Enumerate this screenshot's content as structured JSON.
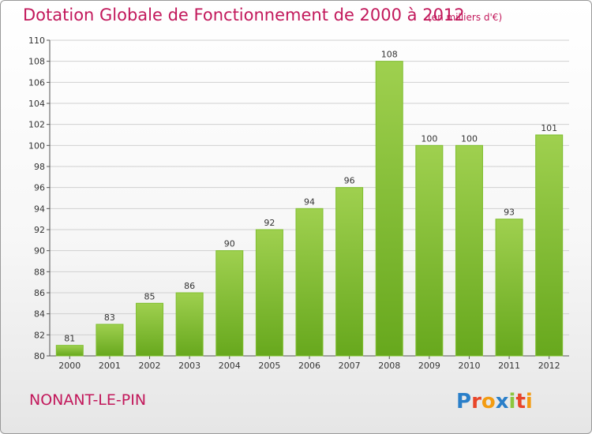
{
  "header": {
    "title": "Dotation Globale de Fonctionnement de 2000 à 2012",
    "units": "(en milliers d'€)"
  },
  "footer": {
    "commune": "NONANT-LE-PIN",
    "logo_text": "Proxiti"
  },
  "colors": {
    "title": "#c2185b",
    "bar_light": "#9fd04f",
    "bar_dark": "#67a81d",
    "grid": "#d0d0d0",
    "axis": "#555555"
  },
  "chart_data": {
    "type": "bar",
    "categories": [
      "2000",
      "2001",
      "2002",
      "2003",
      "2004",
      "2005",
      "2006",
      "2007",
      "2008",
      "2009",
      "2010",
      "2011",
      "2012"
    ],
    "values": [
      81,
      83,
      85,
      86,
      90,
      92,
      94,
      96,
      108,
      100,
      100,
      93,
      101
    ],
    "data_labels": [
      "81",
      "83",
      "85",
      "86",
      "90",
      "92",
      "94",
      "96",
      "108",
      "100",
      "100",
      "93",
      "101"
    ],
    "title": "Dotation Globale de Fonctionnement de 2000 à 2012",
    "xlabel": "",
    "ylabel": "",
    "ylim": [
      80,
      110
    ],
    "yticks": [
      80,
      82,
      84,
      86,
      88,
      90,
      92,
      94,
      96,
      98,
      100,
      102,
      104,
      106,
      108,
      110
    ],
    "grid": true,
    "legend": "none"
  }
}
